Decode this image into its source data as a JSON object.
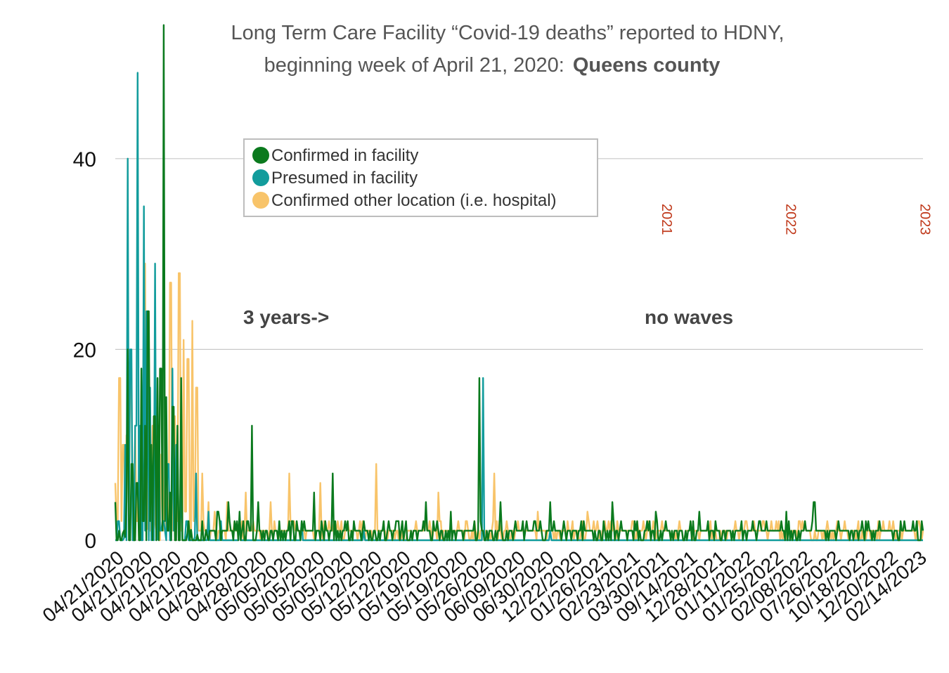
{
  "chart_data": {
    "type": "line",
    "title": "Long Term Care Facility “Covid-19 deaths” reported to HDNY,",
    "subtitle_prefix": "beginning week of April 21, 2020:",
    "subtitle_bold": "Queens county",
    "ylim": [
      0,
      50
    ],
    "yticks": [
      "0",
      "20",
      "40"
    ],
    "grid": true,
    "legend_position": "top-center",
    "x_tick_labels": [
      "04/21/2020",
      "04/21/2020",
      "04/21/2020",
      "04/21/2020",
      "04/28/2020",
      "04/28/2020",
      "05/05/2020",
      "05/05/2020",
      "05/05/2020",
      "05/12/2020",
      "05/12/2020",
      "05/19/2020",
      "05/19/2020",
      "05/26/2020",
      "06/09/2020",
      "06/30/2020",
      "12/22/2020",
      "01/26/2021",
      "02/23/2021",
      "03/30/2021",
      "09/14/2021",
      "12/28/2021",
      "01/11/2022",
      "01/25/2022",
      "02/08/2022",
      "07/26/2022",
      "10/18/2022",
      "12/20/2022",
      "02/14/2023"
    ],
    "annotations": {
      "left": "3 years->",
      "right": "no waves"
    },
    "year_markers": [
      {
        "label": "2021",
        "x_index": 880
      },
      {
        "label": "2022",
        "x_index": 1080
      },
      {
        "label": "2023",
        "x_index": 1296
      }
    ],
    "series": [
      {
        "name": "Confirmed in facility",
        "color": "#0b7a1e",
        "peaks": [
          [
            0,
            4
          ],
          [
            3,
            0
          ],
          [
            5,
            1
          ],
          [
            10,
            0
          ],
          [
            18,
            4
          ],
          [
            20,
            20
          ],
          [
            23,
            0
          ],
          [
            27,
            8
          ],
          [
            30,
            0
          ],
          [
            35,
            6
          ],
          [
            38,
            0
          ],
          [
            42,
            18
          ],
          [
            45,
            2
          ],
          [
            48,
            12
          ],
          [
            50,
            0
          ],
          [
            53,
            24
          ],
          [
            55,
            2
          ],
          [
            58,
            10
          ],
          [
            60,
            0
          ],
          [
            63,
            13
          ],
          [
            65,
            0
          ],
          [
            68,
            17
          ],
          [
            70,
            0
          ],
          [
            73,
            18
          ],
          [
            75,
            1
          ],
          [
            77,
            54
          ],
          [
            79,
            2
          ],
          [
            82,
            15
          ],
          [
            85,
            1
          ],
          [
            88,
            5
          ],
          [
            90,
            0
          ],
          [
            93,
            14
          ],
          [
            96,
            0
          ],
          [
            100,
            12
          ],
          [
            103,
            0
          ],
          [
            106,
            17
          ],
          [
            109,
            0
          ],
          [
            118,
            2
          ],
          [
            125,
            0
          ],
          [
            140,
            2
          ],
          [
            150,
            0
          ],
          [
            165,
            3
          ],
          [
            170,
            0
          ],
          [
            182,
            4
          ],
          [
            190,
            0
          ],
          [
            200,
            3
          ],
          [
            210,
            0
          ],
          [
            220,
            12
          ],
          [
            223,
            0
          ],
          [
            230,
            4
          ],
          [
            240,
            0
          ],
          [
            280,
            2
          ],
          [
            290,
            0
          ],
          [
            320,
            5
          ],
          [
            330,
            0
          ],
          [
            350,
            7
          ],
          [
            360,
            0
          ],
          [
            400,
            2
          ],
          [
            420,
            0
          ],
          [
            455,
            2
          ],
          [
            470,
            0
          ],
          [
            500,
            4
          ],
          [
            510,
            0
          ],
          [
            540,
            3
          ],
          [
            560,
            0
          ],
          [
            586,
            17
          ],
          [
            600,
            0
          ],
          [
            620,
            4
          ],
          [
            640,
            0
          ],
          [
            700,
            4
          ],
          [
            720,
            1
          ],
          [
            800,
            4
          ],
          [
            820,
            1
          ],
          [
            870,
            3
          ],
          [
            890,
            1
          ],
          [
            940,
            3
          ],
          [
            960,
            1
          ],
          [
            1000,
            1
          ],
          [
            1040,
            1
          ],
          [
            1080,
            3
          ],
          [
            1100,
            1
          ],
          [
            1125,
            4
          ],
          [
            1140,
            1
          ],
          [
            1200,
            1
          ],
          [
            1264,
            2
          ],
          [
            1280,
            1
          ],
          [
            1290,
            2
          ],
          [
            1300,
            1
          ]
        ]
      },
      {
        "name": "Presumed in facility",
        "color": "#129c9c",
        "peaks": [
          [
            0,
            0
          ],
          [
            5,
            2
          ],
          [
            10,
            0
          ],
          [
            16,
            10
          ],
          [
            18,
            0
          ],
          [
            20,
            40
          ],
          [
            22,
            2
          ],
          [
            25,
            20
          ],
          [
            28,
            0
          ],
          [
            33,
            12
          ],
          [
            35,
            49
          ],
          [
            37,
            1
          ],
          [
            40,
            12
          ],
          [
            43,
            0
          ],
          [
            46,
            35
          ],
          [
            48,
            1
          ],
          [
            51,
            24
          ],
          [
            53,
            0
          ],
          [
            56,
            16
          ],
          [
            60,
            1
          ],
          [
            64,
            29
          ],
          [
            66,
            0
          ],
          [
            70,
            12
          ],
          [
            73,
            1
          ],
          [
            77,
            2
          ],
          [
            80,
            1
          ],
          [
            85,
            8
          ],
          [
            88,
            0
          ],
          [
            92,
            18
          ],
          [
            95,
            1
          ],
          [
            99,
            10
          ],
          [
            102,
            0
          ],
          [
            106,
            7
          ],
          [
            110,
            0
          ],
          [
            115,
            2
          ],
          [
            120,
            0
          ],
          [
            130,
            7
          ],
          [
            133,
            0
          ],
          [
            150,
            3
          ],
          [
            155,
            0
          ],
          [
            170,
            2
          ],
          [
            180,
            0
          ],
          [
            200,
            2
          ],
          [
            210,
            0
          ],
          [
            300,
            2
          ],
          [
            310,
            0
          ],
          [
            400,
            1
          ],
          [
            500,
            0
          ],
          [
            592,
            17
          ],
          [
            595,
            0
          ],
          [
            700,
            1
          ],
          [
            800,
            0
          ],
          [
            1300,
            0
          ]
        ]
      },
      {
        "name": "Confirmed other location (i.e. hospital)",
        "color": "#f8c46a",
        "peaks": [
          [
            0,
            6
          ],
          [
            3,
            2
          ],
          [
            7,
            17
          ],
          [
            10,
            2
          ],
          [
            13,
            10
          ],
          [
            16,
            1
          ],
          [
            19,
            11
          ],
          [
            22,
            3
          ],
          [
            25,
            18
          ],
          [
            28,
            1
          ],
          [
            32,
            12
          ],
          [
            35,
            2
          ],
          [
            39,
            8
          ],
          [
            43,
            1
          ],
          [
            47,
            29
          ],
          [
            50,
            3
          ],
          [
            54,
            14
          ],
          [
            57,
            1
          ],
          [
            61,
            12
          ],
          [
            64,
            2
          ],
          [
            68,
            10
          ],
          [
            71,
            0
          ],
          [
            75,
            9
          ],
          [
            78,
            1
          ],
          [
            82,
            9
          ],
          [
            85,
            2
          ],
          [
            89,
            27
          ],
          [
            92,
            1
          ],
          [
            96,
            13
          ],
          [
            99,
            2
          ],
          [
            103,
            28
          ],
          [
            106,
            1
          ],
          [
            110,
            21
          ],
          [
            113,
            3
          ],
          [
            117,
            19
          ],
          [
            120,
            1
          ],
          [
            124,
            23
          ],
          [
            127,
            2
          ],
          [
            131,
            16
          ],
          [
            135,
            1
          ],
          [
            140,
            7
          ],
          [
            144,
            1
          ],
          [
            150,
            4
          ],
          [
            155,
            1
          ],
          [
            160,
            3
          ],
          [
            168,
            1
          ],
          [
            180,
            4
          ],
          [
            190,
            1
          ],
          [
            210,
            5
          ],
          [
            220,
            1
          ],
          [
            250,
            4
          ],
          [
            260,
            1
          ],
          [
            280,
            7
          ],
          [
            290,
            1
          ],
          [
            330,
            6
          ],
          [
            340,
            1
          ],
          [
            420,
            8
          ],
          [
            430,
            1
          ],
          [
            520,
            5
          ],
          [
            530,
            1
          ],
          [
            610,
            7
          ],
          [
            620,
            1
          ],
          [
            680,
            3
          ],
          [
            700,
            1
          ],
          [
            760,
            3
          ],
          [
            800,
            1
          ],
          [
            1290,
            1
          ]
        ]
      }
    ]
  }
}
